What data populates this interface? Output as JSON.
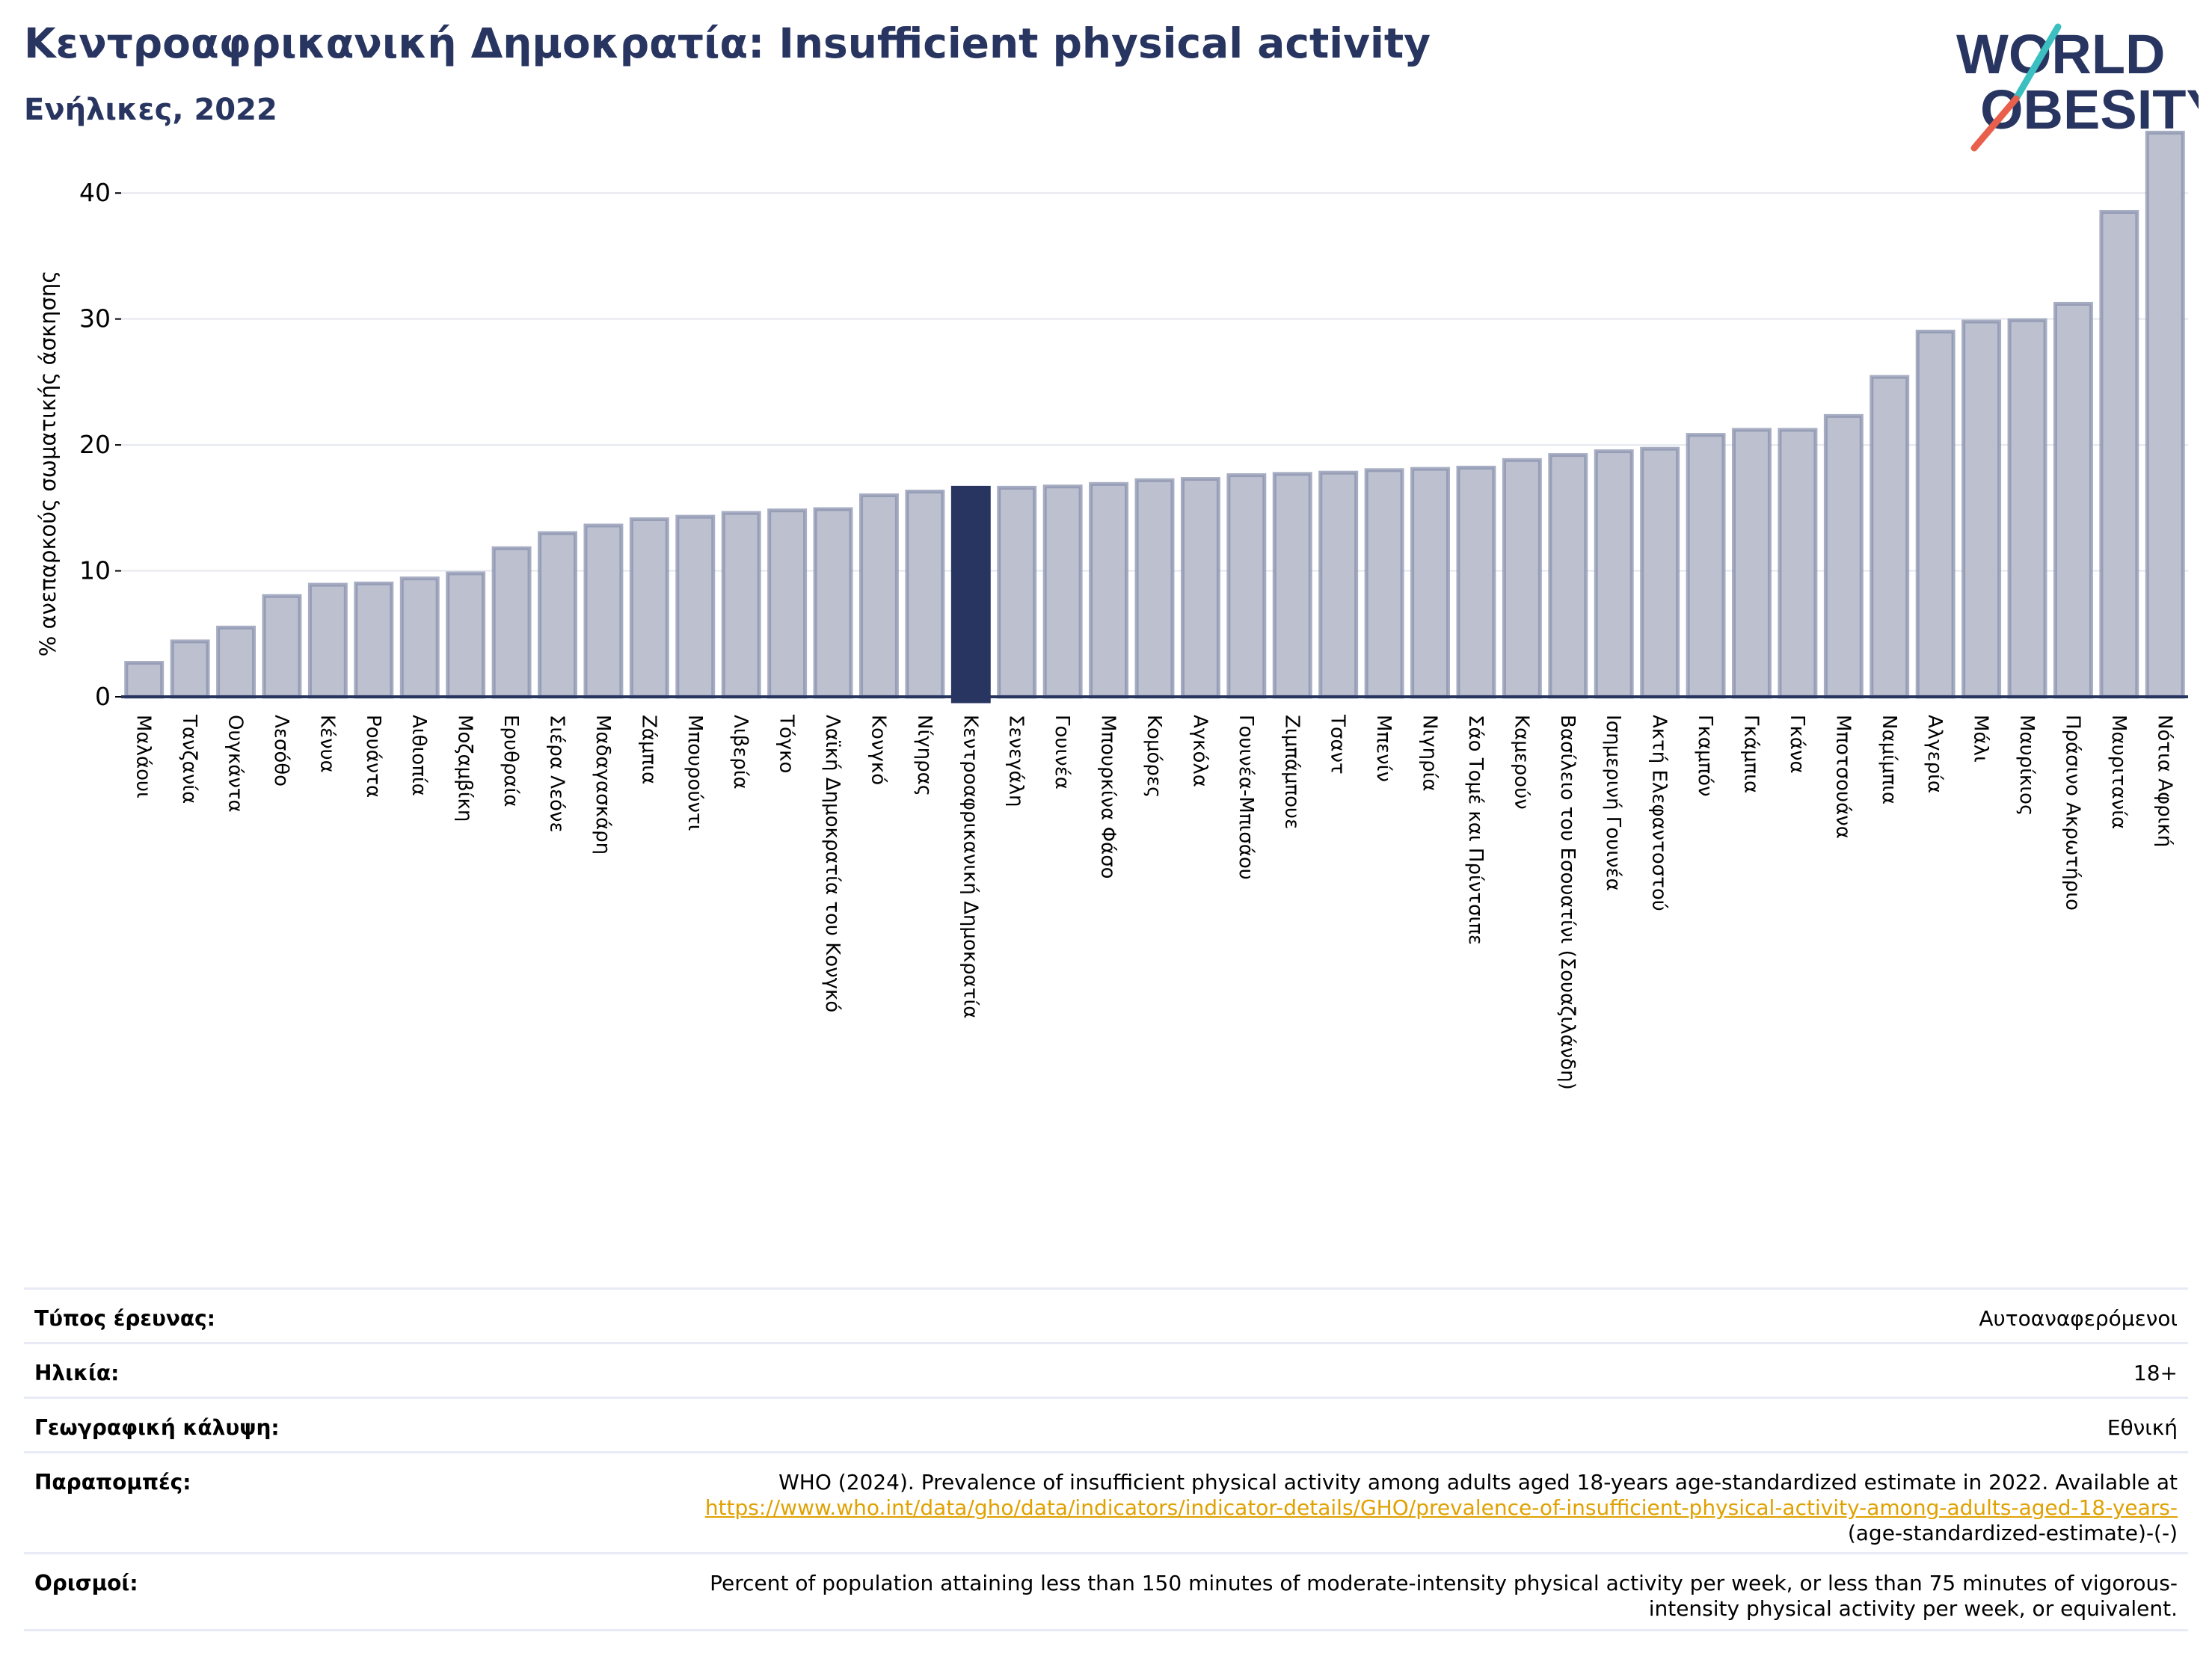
{
  "header": {
    "title": "Κεντροαφρικανική Δημοκρατία: Insufficient physical activity",
    "subtitle": "Ενήλικες, 2022"
  },
  "logo": {
    "line1": "WORLD",
    "line2": "OBESITY",
    "colors": {
      "text": "#283560",
      "slash_teal": "#3bbfc0",
      "slash_red": "#e8604c"
    }
  },
  "chart_data": {
    "type": "bar",
    "ylabel": "% ανεπαρκούς σωματικής άσκησης",
    "ylim": [
      0,
      45
    ],
    "yticks": [
      0,
      10,
      20,
      30,
      40
    ],
    "grid": true,
    "highlight": "Κεντροαφρικανική Δημοκρατία",
    "colors": {
      "bar": "#bcc0cf",
      "bar_edge": "#8a91ad",
      "highlight": "#283560",
      "grid": "#e5e7ef",
      "axis": "#283560"
    },
    "categories": [
      "Μαλάουι",
      "Τανζανία",
      "Ουγκάντα",
      "Λεσόθο",
      "Κένυα",
      "Ρουάντα",
      "Αιθιοπία",
      "Μοζαμβίκη",
      "Ερυθραία",
      "Σιέρα Λεόνε",
      "Μαδαγασκάρη",
      "Ζάμπια",
      "Μπουρούντι",
      "Λιβερία",
      "Τόγκο",
      "Λαϊκή Δημοκρατία του Κονγκό",
      "Κονγκό",
      "Νίγηρας",
      "Κεντροαφρικανική Δημοκρατία",
      "Σενεγάλη",
      "Γουινέα",
      "Μπουρκίνα Φάσο",
      "Κομόρες",
      "Αγκόλα",
      "Γουινέα-Μπισάου",
      "Ζιμπάμπουε",
      "Τσαντ",
      "Μπενίν",
      "Νιγηρία",
      "Σάο Τομέ και Πρίντσιπε",
      "Καμερούν",
      "Βασίλειο του Εσουατίνι (Σουαζιλάνδη)",
      "Ισημερινή Γουινέα",
      "Ακτή Ελεφαντοστού",
      "Γκαμπόν",
      "Γκάμπια",
      "Γκάνα",
      "Μποτσουάνα",
      "Ναμίμπια",
      "Αλγερία",
      "Μάλι",
      "Μαυρίκιος",
      "Πράσινο Ακρωτήριο",
      "Μαυριτανία",
      "Νότια Αφρική"
    ],
    "values": [
      2.7,
      4.4,
      5.5,
      8.0,
      8.9,
      9.0,
      9.4,
      9.8,
      11.8,
      13.0,
      13.6,
      14.1,
      14.3,
      14.6,
      14.8,
      14.9,
      16.0,
      16.3,
      16.6,
      16.6,
      16.7,
      16.9,
      17.2,
      17.3,
      17.6,
      17.7,
      17.8,
      18.0,
      18.1,
      18.2,
      18.8,
      19.2,
      19.5,
      19.7,
      20.8,
      21.2,
      21.2,
      22.3,
      25.4,
      29.0,
      29.8,
      29.9,
      31.2,
      38.5,
      44.8
    ]
  },
  "meta": {
    "rows": [
      {
        "label": "Τύπος έρευνας:",
        "value": "Αυτοαναφερόμενοι"
      },
      {
        "label": "Ηλικία:",
        "value": "18+"
      },
      {
        "label": "Γεωγραφική κάλυψη:",
        "value": "Εθνική"
      }
    ],
    "references": {
      "label": "Παραπομπές:",
      "text": "WHO (2024). Prevalence of insufficient physical activity among adults aged 18-years age-standardized estimate in 2022. Available at",
      "link": "https://www.who.int/data/gho/data/indicators/indicator-details/GHO/prevalence-of-insufficient-physical-activity-among-adults-aged-18-years-",
      "tail": "(age-standardized-estimate)-(-)"
    },
    "definitions": {
      "label": "Ορισμοί:",
      "line1": "Percent of population attaining less than 150 minutes of moderate-intensity physical activity per week, or less than 75 minutes of vigorous-",
      "line2": "intensity physical activity per week, or equivalent."
    }
  }
}
